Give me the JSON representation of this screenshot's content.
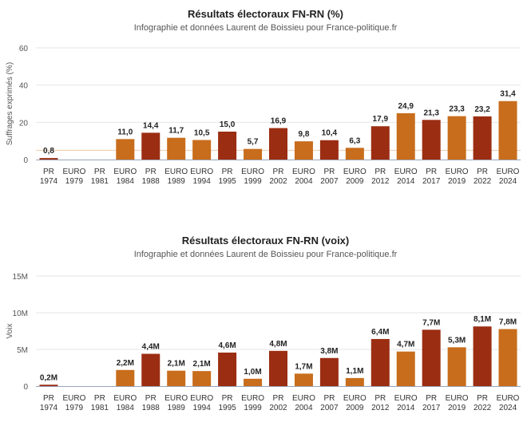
{
  "colors": {
    "pr": "#9b2d12",
    "euro": "#c86d1c",
    "grid": "#e6e6e6",
    "axis": "#9aa3b8",
    "highlight_line": "#f0c9a8"
  },
  "x_categories": [
    [
      "PR",
      "1974"
    ],
    [
      "EURO",
      "1979"
    ],
    [
      "PR",
      "1981"
    ],
    [
      "EURO",
      "1984"
    ],
    [
      "PR",
      "1988"
    ],
    [
      "EURO",
      "1989"
    ],
    [
      "EURO",
      "1994"
    ],
    [
      "PR",
      "1995"
    ],
    [
      "EURO",
      "1999"
    ],
    [
      "PR",
      "2002"
    ],
    [
      "EURO",
      "2004"
    ],
    [
      "PR",
      "2007"
    ],
    [
      "EURO",
      "2009"
    ],
    [
      "PR",
      "2012"
    ],
    [
      "EURO",
      "2014"
    ],
    [
      "PR",
      "2017"
    ],
    [
      "EURO",
      "2019"
    ],
    [
      "PR",
      "2022"
    ],
    [
      "EURO",
      "2024"
    ]
  ],
  "chart_data": [
    {
      "type": "bar",
      "title": "Résultats électoraux FN-RN (%)",
      "subtitle": "Infographie et données Laurent de Boissieu pour France-politique.fr",
      "ylabel": "Suffrages exprimés (%)",
      "ylim": [
        0,
        60
      ],
      "yticks": [
        0,
        20,
        40,
        60
      ],
      "ytick_labels": [
        "0",
        "20",
        "40",
        "60"
      ],
      "grid": true,
      "reference_line": 5,
      "values": [
        0.8,
        null,
        null,
        11.0,
        14.4,
        11.7,
        10.5,
        15.0,
        5.7,
        16.9,
        9.8,
        10.4,
        6.3,
        17.9,
        24.9,
        21.3,
        23.3,
        23.2,
        31.4
      ],
      "labels": [
        "0,8",
        "",
        "",
        "11,0",
        "14,4",
        "11,7",
        "10,5",
        "15,0",
        "5,7",
        "16,9",
        "9,8",
        "10,4",
        "6,3",
        "17,9",
        "24,9",
        "21,3",
        "23,3",
        "23,2",
        "31,4"
      ]
    },
    {
      "type": "bar",
      "title": "Résultats électoraux FN-RN (voix)",
      "subtitle": "Infographie et données Laurent de Boissieu pour France-politique.fr",
      "ylabel": "Voix",
      "ylim": [
        0,
        15000000
      ],
      "yticks": [
        0,
        5000000,
        10000000,
        15000000
      ],
      "ytick_labels": [
        "0",
        "5M",
        "10M",
        "15M"
      ],
      "grid": true,
      "values": [
        190000,
        null,
        null,
        2200000,
        4400000,
        2100000,
        2050000,
        4570000,
        1000000,
        4800000,
        1700000,
        3830000,
        1100000,
        6420000,
        4710000,
        7680000,
        5290000,
        8130000,
        7770000
      ],
      "labels": [
        "0,2M",
        "",
        "",
        "2,2M",
        "4,4M",
        "2,1M",
        "2,1M",
        "4,6M",
        "1,0M",
        "4,8M",
        "1,7M",
        "3,8M",
        "1,1M",
        "6,4M",
        "4,7M",
        "7,7M",
        "5,3M",
        "8,1M",
        "7,8M"
      ]
    }
  ]
}
